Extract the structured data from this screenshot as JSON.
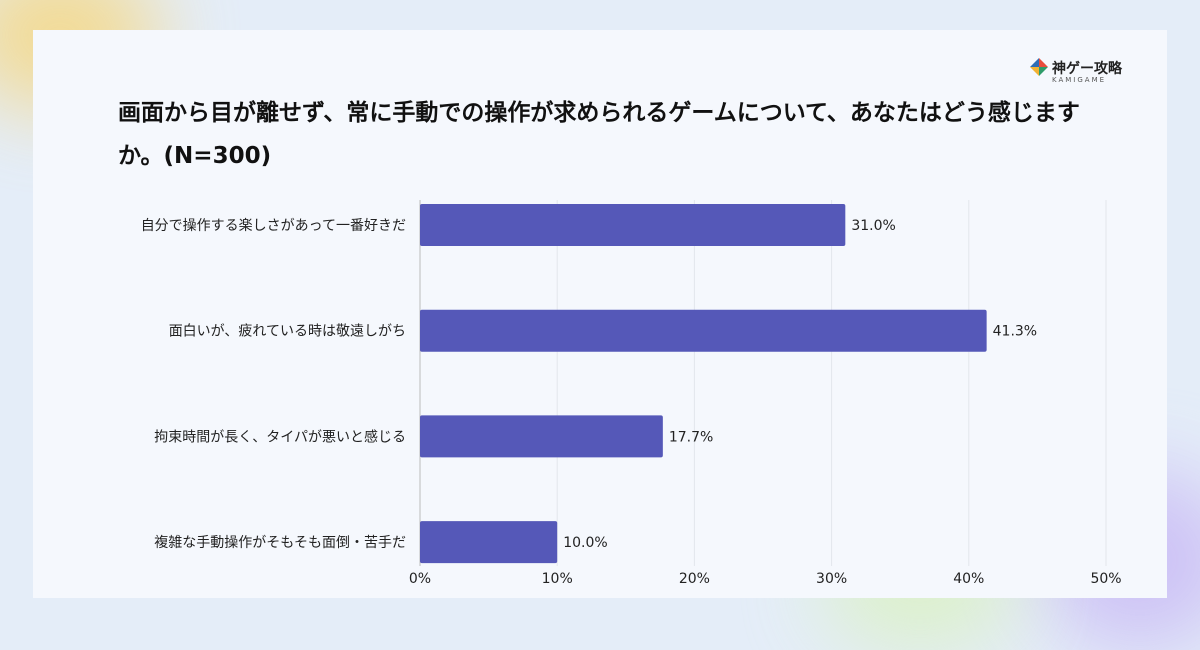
{
  "brand": {
    "name": "神ゲー攻略",
    "sub": "KAMIGAME"
  },
  "chart_data": {
    "type": "bar",
    "orientation": "horizontal",
    "title": "画面から目が離せず、常に手動での操作が求められるゲームについて、あなたはどう感じますか。(N=300)",
    "categories": [
      "自分で操作する楽しさがあって一番好きだ",
      "面白いが、疲れている時は敬遠しがち",
      "拘束時間が長く、タイパが悪いと感じる",
      "複雑な手動操作がそもそも面倒・苦手だ"
    ],
    "values": [
      31.0,
      41.3,
      17.7,
      10.0
    ],
    "value_labels": [
      "31.0%",
      "41.3%",
      "17.7%",
      "10.0%"
    ],
    "color": "#5558b8",
    "xlim": [
      0,
      50
    ],
    "xticks": [
      {
        "value": 0,
        "label": "0%"
      },
      {
        "value": 10,
        "label": "10%"
      },
      {
        "value": 20,
        "label": "20%"
      },
      {
        "value": 30,
        "label": "30%"
      },
      {
        "value": 40,
        "label": "40%"
      },
      {
        "value": 50,
        "label": "50%"
      }
    ],
    "grid": true
  }
}
